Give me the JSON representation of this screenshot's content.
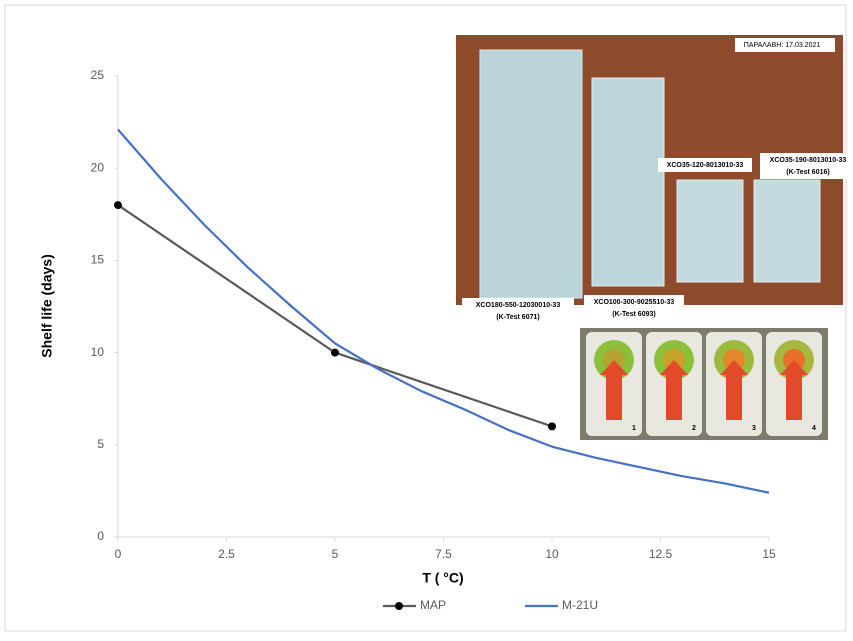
{
  "chart_data": {
    "type": "line",
    "y_label": "Shelf life (days)",
    "x_label": "T ( °C)",
    "xlim": [
      0,
      15
    ],
    "xticks": [
      0,
      2.5,
      5,
      7.5,
      10,
      12.5,
      15
    ],
    "ylim": [
      0,
      25
    ],
    "yticks": [
      0,
      5,
      10,
      15,
      20,
      25
    ],
    "series": [
      {
        "name": "MAP",
        "color": "#595959",
        "marker": true,
        "x": [
          0,
          5,
          10
        ],
        "values": [
          18,
          10,
          6
        ]
      },
      {
        "name": "M-21U",
        "color": "#4472c4",
        "marker": false,
        "x": [
          0,
          1,
          2,
          3,
          4,
          5,
          6,
          7,
          8,
          9,
          10,
          11,
          12,
          13,
          14,
          15
        ],
        "values": [
          22.1,
          19.4,
          16.9,
          14.6,
          12.5,
          10.5,
          9.1,
          7.9,
          6.9,
          5.8,
          4.9,
          4.3,
          3.8,
          3.3,
          2.9,
          2.4
        ]
      }
    ],
    "annotations": [
      "ΠΑΡΑΛΑΒΗ: 17.03.2021",
      "XCO35-120-8013010-33",
      "XCO35-190-8013010-33",
      "(K-Test 6016)",
      "XCO180-550-12030010-33",
      "(K-Test 6071)",
      "XCO100-300-9025510-33",
      "(K-Test 6093)",
      "1",
      "2",
      "3",
      "4"
    ]
  }
}
